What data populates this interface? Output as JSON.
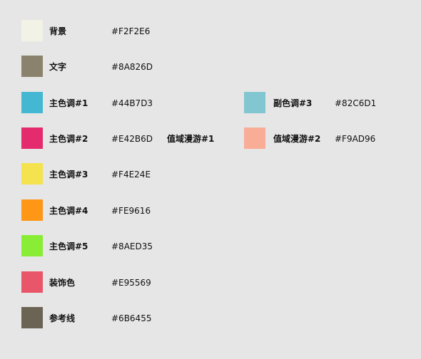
{
  "left_column": [
    {
      "label": "背景",
      "hex": "#F2F2E6",
      "color": "#F2F2E6"
    },
    {
      "label": "文字",
      "hex": "#8A826D",
      "color": "#8A826D"
    },
    {
      "label": "主色调#1",
      "hex": "#44B7D3",
      "color": "#44B7D3"
    },
    {
      "label": "主色调#2",
      "hex": "#E42B6D",
      "color": "#E42B6D"
    },
    {
      "label": "主色调#3",
      "hex": "#F4E24E",
      "color": "#F4E24E"
    },
    {
      "label": "主色调#4",
      "hex": "#FE9616",
      "color": "#FE9616"
    },
    {
      "label": "主色调#5",
      "hex": "#8AED35",
      "color": "#8AED35"
    },
    {
      "label": "装饰色",
      "hex": "#E95569",
      "color": "#E95569"
    },
    {
      "label": "参考线",
      "hex": "#6B6455",
      "color": "#6B6455"
    }
  ],
  "right_column": [
    {
      "label": "副色调#3",
      "hex": "#82C6D1",
      "color": "#82C6D1"
    },
    {
      "label": "值域漫游#2",
      "hex": "#F9AD96",
      "color": "#F9AD96"
    }
  ],
  "floating_label": "值域漫游#1"
}
